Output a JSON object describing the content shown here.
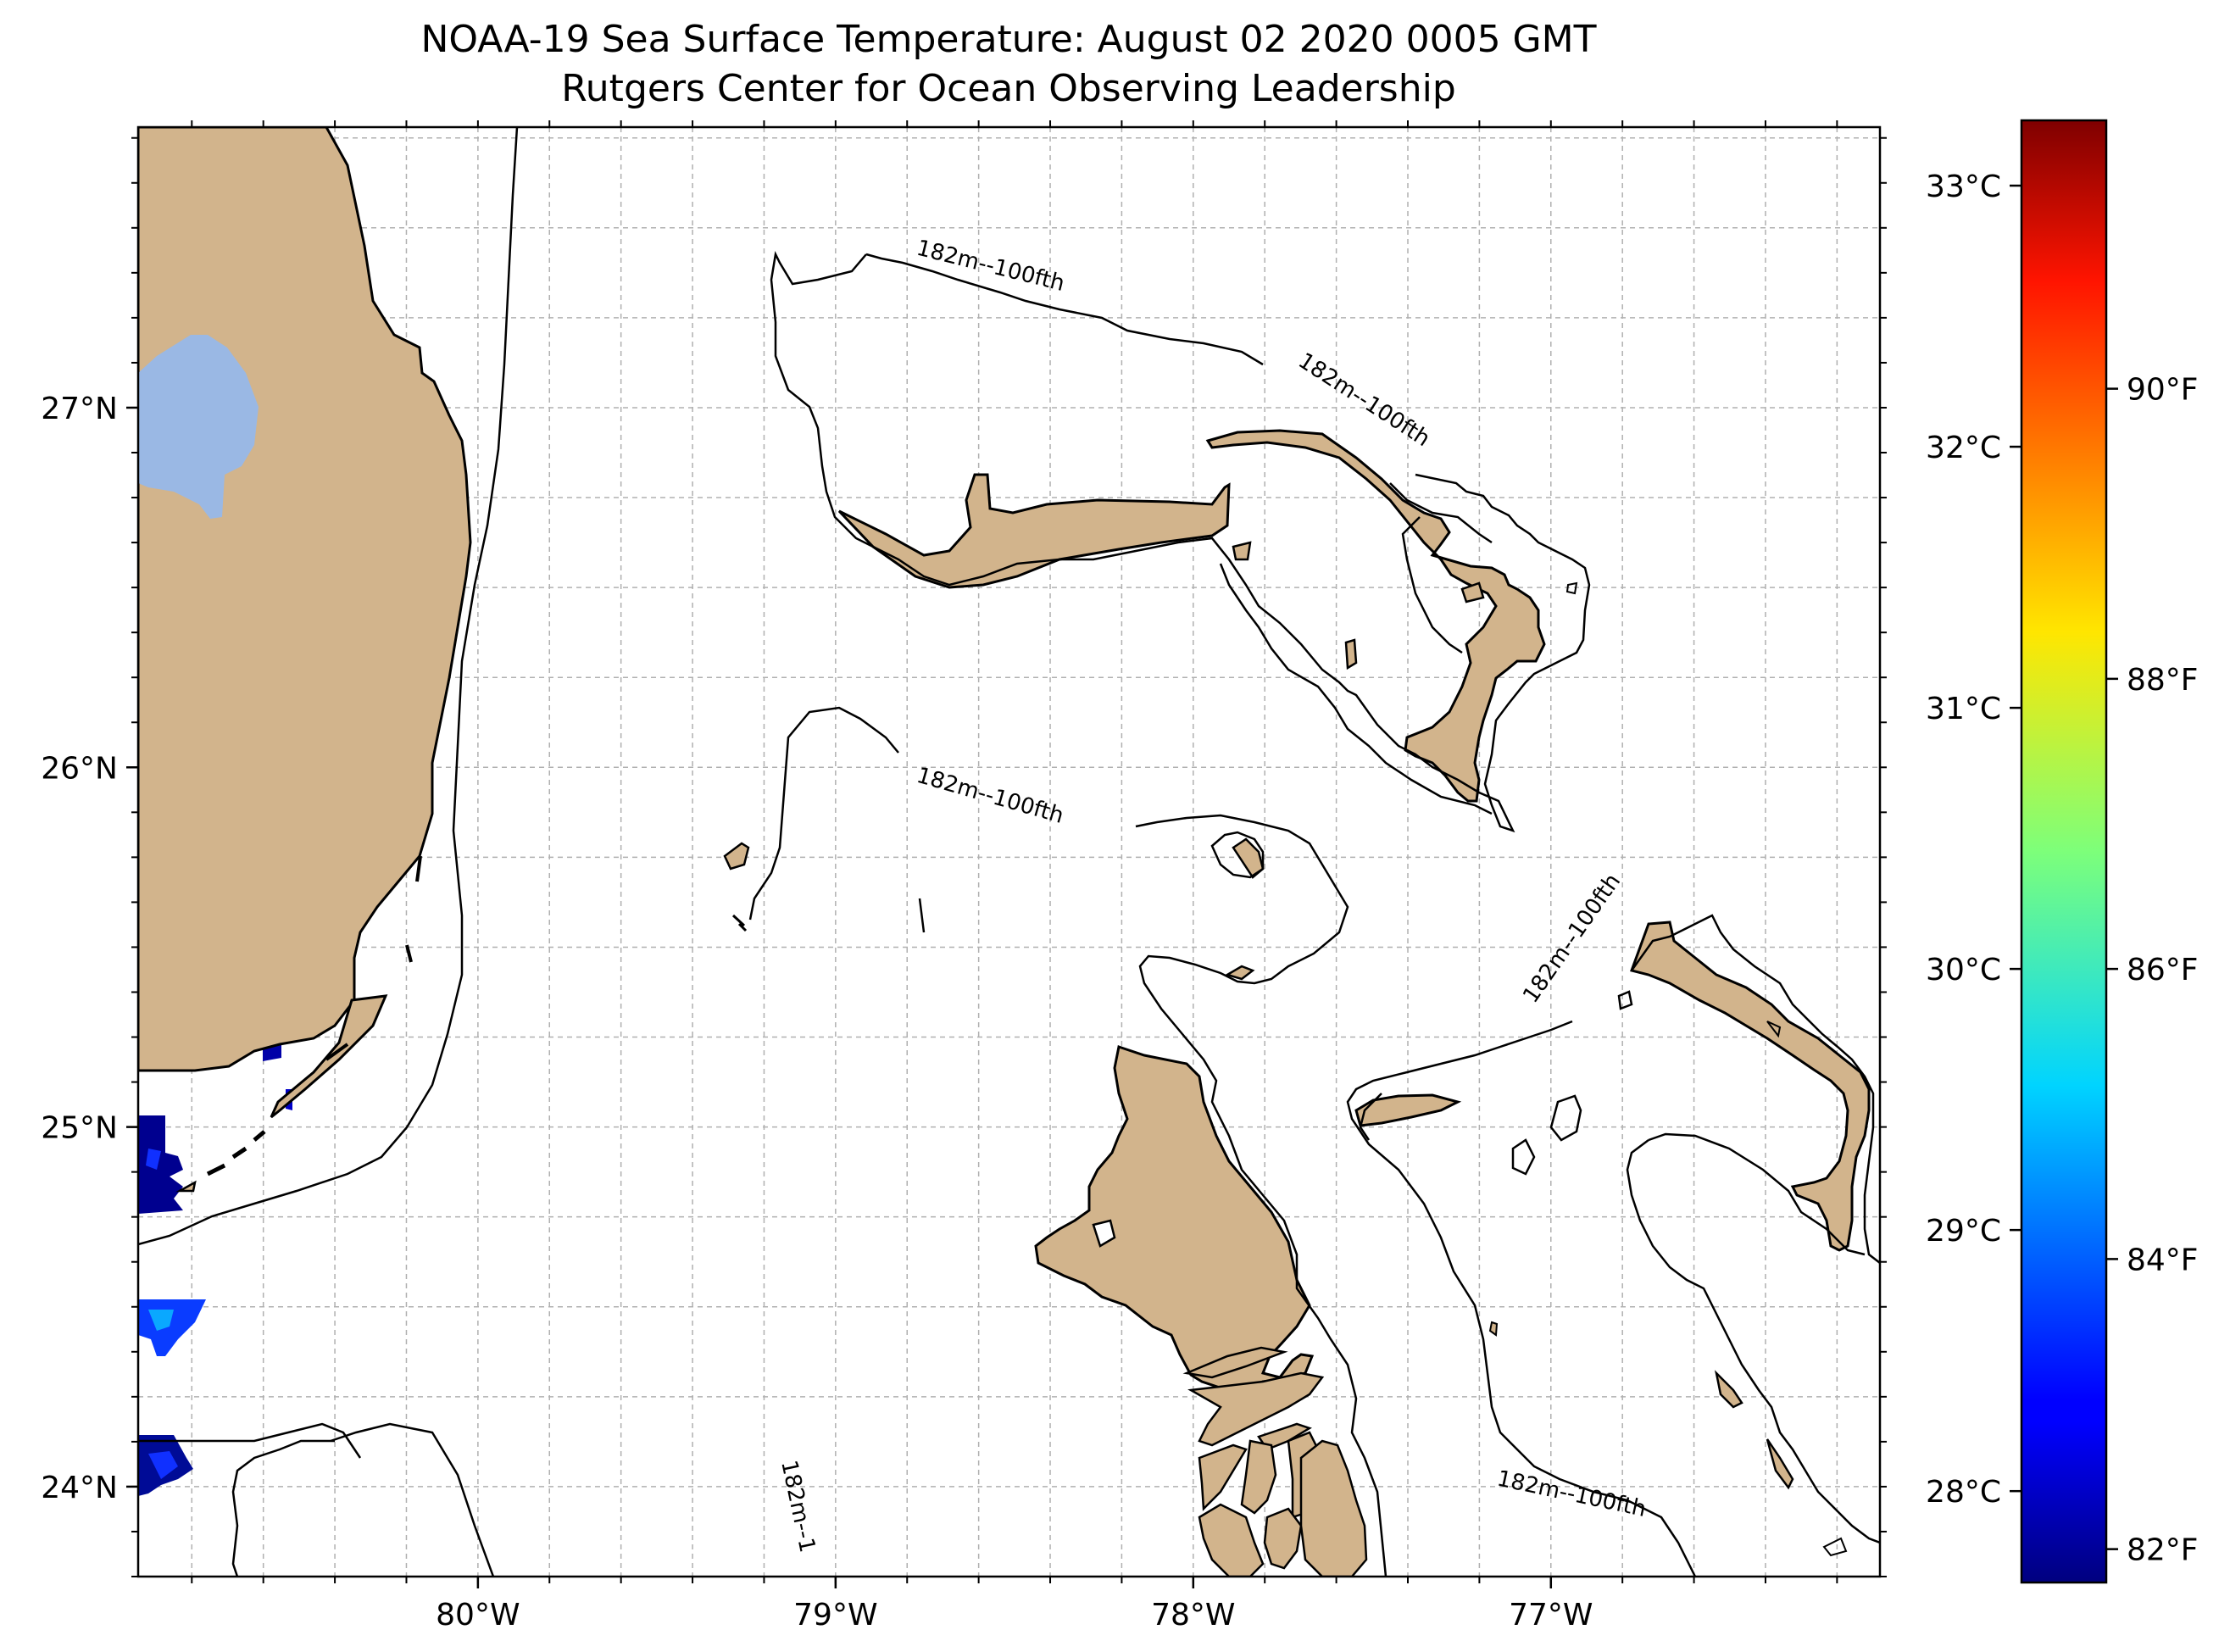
{
  "title": "NOAA-19 Sea Surface Temperature: August 02 2020 0005 GMT",
  "subtitle": "Rutgers Center for Ocean Observing Leadership",
  "map": {
    "projection": "plate carree",
    "lon_range": [
      -80.95,
      -76.08
    ],
    "lat_range": [
      23.75,
      27.78
    ],
    "gridlines": "dashed gray",
    "lon_ticks": [
      {
        "value": -80,
        "label": "80°W"
      },
      {
        "value": -79,
        "label": "79°W"
      },
      {
        "value": -78,
        "label": "78°W"
      },
      {
        "value": -77,
        "label": "77°W"
      }
    ],
    "lat_ticks": [
      {
        "value": 27,
        "label": "27°N"
      },
      {
        "value": 26,
        "label": "26°N"
      },
      {
        "value": 25,
        "label": "25°N"
      },
      {
        "value": 24,
        "label": "24°N"
      }
    ],
    "colors": {
      "land": "#D2B48C",
      "lake": "#9AB8E4",
      "coast": "#000000",
      "contour": "#000000"
    },
    "contour_label": "182m--100fth",
    "contour_labels_truncated": [
      "182m--1"
    ]
  },
  "colorbar": {
    "colormap": "jet",
    "celsius_range": [
      27.65,
      33.25
    ],
    "celsius_ticks": [
      {
        "value": 28,
        "label": "28°C"
      },
      {
        "value": 29,
        "label": "29°C"
      },
      {
        "value": 30,
        "label": "30°C"
      },
      {
        "value": 31,
        "label": "31°C"
      },
      {
        "value": 32,
        "label": "32°C"
      },
      {
        "value": 33,
        "label": "33°C"
      }
    ],
    "fahrenheit_ticks": [
      {
        "value": 82,
        "label": "82°F"
      },
      {
        "value": 84,
        "label": "84°F"
      },
      {
        "value": 86,
        "label": "86°F"
      },
      {
        "value": 88,
        "label": "88°F"
      },
      {
        "value": 90,
        "label": "90°F"
      }
    ]
  }
}
